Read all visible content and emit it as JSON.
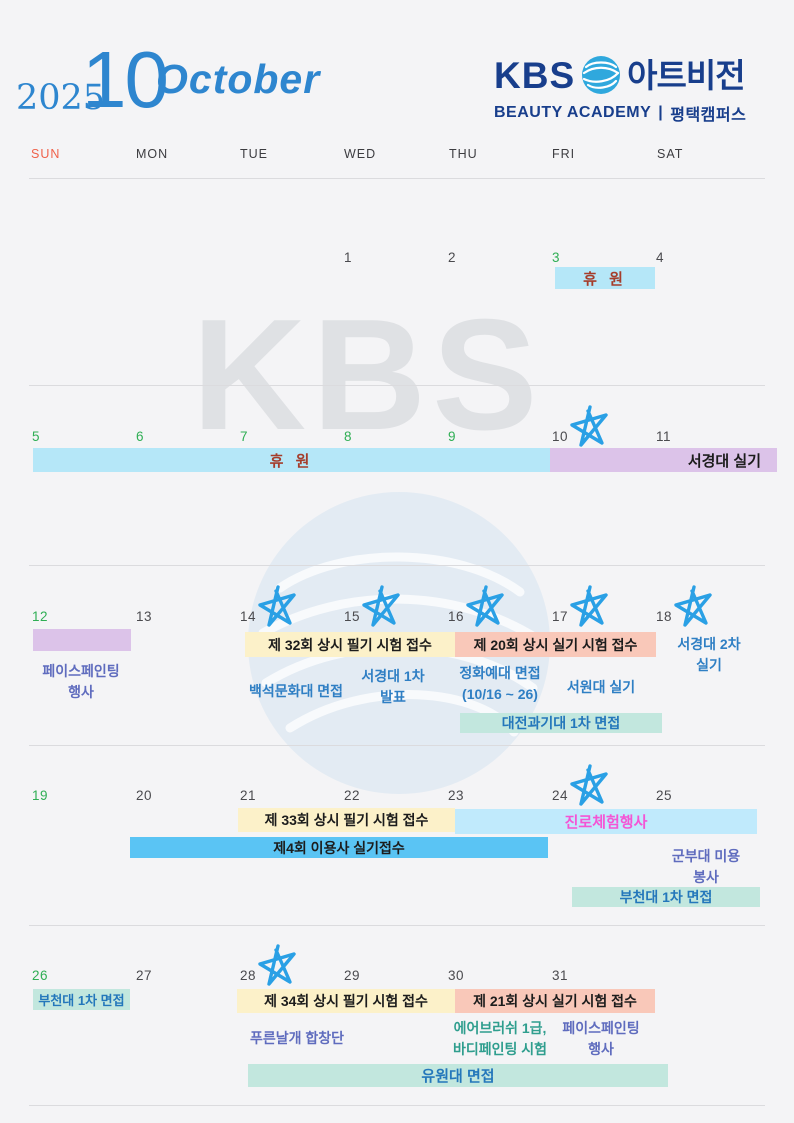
{
  "header": {
    "year": "2025",
    "month_number": "10",
    "month_name": "October",
    "logo": {
      "kbs": "KBS",
      "brand": "아트비전",
      "subtitle": "BEAUTY ACADEMY",
      "divider": "|",
      "campus": "평택캠퍼스"
    }
  },
  "weekday_header": [
    "SUN",
    "MON",
    "TUE",
    "WED",
    "THU",
    "FRI",
    "SAT"
  ],
  "watermarks": {
    "kbs_text": "KBS",
    "globe_icon": "kbs-globe-watermark"
  },
  "calendar": {
    "weeks": [
      {
        "dates": [
          {
            "day": "1",
            "col": 3,
            "holiday": false,
            "star": false
          },
          {
            "day": "2",
            "col": 4,
            "holiday": false,
            "star": false
          },
          {
            "day": "3",
            "col": 5,
            "holiday": true,
            "star": false
          },
          {
            "day": "4",
            "col": 6,
            "holiday": false,
            "star": false
          }
        ]
      },
      {
        "dates": [
          {
            "day": "5",
            "col": 0,
            "holiday": true,
            "star": false
          },
          {
            "day": "6",
            "col": 1,
            "holiday": true,
            "star": false
          },
          {
            "day": "7",
            "col": 2,
            "holiday": true,
            "star": false
          },
          {
            "day": "8",
            "col": 3,
            "holiday": true,
            "star": false
          },
          {
            "day": "9",
            "col": 4,
            "holiday": true,
            "star": false
          },
          {
            "day": "10",
            "col": 5,
            "holiday": false,
            "star": true
          },
          {
            "day": "11",
            "col": 6,
            "holiday": false,
            "star": false
          }
        ]
      },
      {
        "dates": [
          {
            "day": "12",
            "col": 0,
            "holiday": true,
            "star": false
          },
          {
            "day": "13",
            "col": 1,
            "holiday": false,
            "star": false
          },
          {
            "day": "14",
            "col": 2,
            "holiday": false,
            "star": true
          },
          {
            "day": "15",
            "col": 3,
            "holiday": false,
            "star": true
          },
          {
            "day": "16",
            "col": 4,
            "holiday": false,
            "star": true
          },
          {
            "day": "17",
            "col": 5,
            "holiday": false,
            "star": true
          },
          {
            "day": "18",
            "col": 6,
            "holiday": false,
            "star": true
          }
        ]
      },
      {
        "dates": [
          {
            "day": "19",
            "col": 0,
            "holiday": true,
            "star": false
          },
          {
            "day": "20",
            "col": 1,
            "holiday": false,
            "star": false
          },
          {
            "day": "21",
            "col": 2,
            "holiday": false,
            "star": false
          },
          {
            "day": "22",
            "col": 3,
            "holiday": false,
            "star": false
          },
          {
            "day": "23",
            "col": 4,
            "holiday": false,
            "star": false
          },
          {
            "day": "24",
            "col": 5,
            "holiday": false,
            "star": true
          },
          {
            "day": "25",
            "col": 6,
            "holiday": false,
            "star": false
          }
        ]
      },
      {
        "dates": [
          {
            "day": "26",
            "col": 0,
            "holiday": true,
            "star": false
          },
          {
            "day": "27",
            "col": 1,
            "holiday": false,
            "star": false
          },
          {
            "day": "28",
            "col": 2,
            "holiday": false,
            "star": true
          },
          {
            "day": "29",
            "col": 3,
            "holiday": false,
            "star": false
          },
          {
            "day": "30",
            "col": 4,
            "holiday": false,
            "star": false
          },
          {
            "day": "31",
            "col": 5,
            "holiday": false,
            "star": false
          }
        ]
      }
    ]
  },
  "events": {
    "closure_oct3": {
      "label": "휴 원",
      "dates": "10/3"
    },
    "closure_oct5_9": {
      "label": "휴 원",
      "dates": "10/5~10/9"
    },
    "seokyeongdae_silgi": {
      "label": "서경대 실기",
      "dates": "10/10~10/11"
    },
    "facepainting_event_w3": {
      "label": "페이스페인팅\n행사",
      "dates": "10/12"
    },
    "exam32_pilgi": {
      "label": "제 32회 상시 필기 시험 접수",
      "dates": "10/14~10/15"
    },
    "exam20_silgi": {
      "label": "제 20회 상시 실기 시험 접수",
      "dates": "10/16~10/17"
    },
    "seokyeongdae_2cha_silgi": {
      "label": "서경대 2차\n실기",
      "dates": "10/18"
    },
    "baekseok_munhwadae_myeonjeop": {
      "label": "백석문화대 면접",
      "dates": "10/14"
    },
    "seokyeongdae_1cha_balpyo": {
      "label": "서경대 1차\n발표",
      "dates": "10/15"
    },
    "jeonghwa_yedae_myeonjeop": {
      "label": "정화예대 면접\n(10/16 ~ 26)",
      "dates": "10/16"
    },
    "seowondae_silgi": {
      "label": "서원대 실기",
      "dates": "10/17"
    },
    "daejeon_gwagidae_myeonjeop": {
      "label": "대전과기대 1차 면접",
      "dates": "10/16~10/17"
    },
    "exam33_pilgi": {
      "label": "제 33회 상시 필기 시험 접수",
      "dates": "10/21~10/22"
    },
    "jinro_cheheom": {
      "label": "진로체험행사",
      "dates": "10/23~10/25"
    },
    "iyongsa_silgi_jeopsu": {
      "label": "제4회 이용사 실기접수",
      "dates": "10/20~10/23"
    },
    "gunbudae_miyong_bongsa": {
      "label": "군부대 미용\n봉사",
      "dates": "10/25"
    },
    "bucheondae_myeonjeop_bar": {
      "label": "부천대 1차 면접",
      "dates": "10/24~10/25"
    },
    "bucheondae_myeonjeop_text": {
      "label": "부천대 1차 면접",
      "dates": "10/26"
    },
    "exam34_pilgi": {
      "label": "제 34회 상시 필기 시험 접수",
      "dates": "10/28~10/29"
    },
    "exam21_silgi": {
      "label": "제 21회 상시 실기 시험 접수",
      "dates": "10/30~10/31"
    },
    "pureunnalgae_hapchangdan": {
      "label": "푸른날개 합창단",
      "dates": "10/28"
    },
    "airbrush_bodypainting": {
      "label": "에어브러쉬 1급,\n바디페인팅 시험",
      "dates": "10/30"
    },
    "facepainting_event_w5": {
      "label": "페이스페인팅\n행사",
      "dates": "10/31"
    },
    "yuwondae_myeonjeop": {
      "label": "유원대 면접",
      "dates": "10/28~10/31"
    }
  },
  "colors": {
    "background": "#f4f4f6",
    "accent_blue": "#2e86cf",
    "logo_navy": "#183e8c",
    "globe_blue": "#2fa8dd",
    "sunday_red": "#f0614a",
    "holiday_green": "#2fae54",
    "star_blue": "#2aa0e5",
    "bar_cyan": "#b5e7f8",
    "bar_purple": "#dcc3e9",
    "bar_yellow": "#fcf1c9",
    "bar_pink": "#f9c8b9",
    "bar_teal": "#c2e7de",
    "bar_skyblue": "#c0eafc",
    "bar_blue": "#5ac4f4",
    "text_closure_red": "#a53d2b",
    "text_blue": "#2f7fc4",
    "text_purple": "#5f6cbe",
    "text_teal": "#2f9e8e",
    "text_magenta": "#f455d5",
    "text_navy": "#2477bb"
  }
}
